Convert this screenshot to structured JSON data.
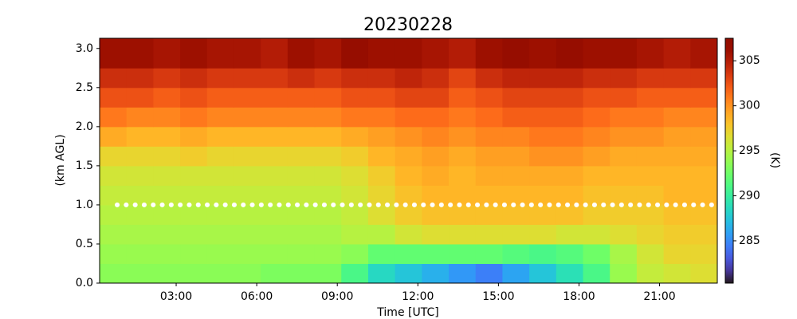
{
  "chart_data": {
    "type": "heatmap",
    "title": "20230228",
    "xlabel": "Time [UTC]",
    "ylabel": "(km AGL)",
    "colorbar_label": "(K)",
    "colormap": "turbo",
    "x_bins": [
      0.15,
      1.15,
      2.15,
      3.15,
      4.15,
      5.15,
      6.15,
      7.15,
      8.15,
      9.15,
      10.15,
      11.15,
      12.15,
      13.15,
      14.15,
      15.15,
      16.15,
      17.15,
      18.15,
      19.15,
      20.15,
      21.15,
      22.15,
      23.15
    ],
    "y_bins": [
      0,
      0.25,
      0.5,
      0.75,
      1.0,
      1.25,
      1.5,
      1.75,
      2.0,
      2.25,
      2.5,
      2.75,
      3.13
    ],
    "z": [
      [
        293.5,
        293.5,
        293.5,
        293.5,
        293.5,
        293.5,
        293,
        293,
        293,
        291,
        288.5,
        287.5,
        286.5,
        285.5,
        284.5,
        286,
        287.5,
        289,
        291,
        294,
        295.5,
        296,
        296.5
      ],
      [
        294,
        294,
        294,
        294,
        294,
        294,
        294,
        294,
        294,
        293.5,
        292,
        292,
        292,
        292,
        292,
        291.5,
        291,
        291.5,
        292.5,
        294.5,
        296,
        297,
        297
      ],
      [
        294.5,
        294.5,
        294.5,
        294.5,
        294.5,
        294.5,
        294.5,
        294.5,
        294.5,
        295,
        295,
        296,
        296.5,
        296.5,
        296.5,
        296.5,
        296.5,
        296,
        296,
        296.5,
        297,
        297.5,
        297.5
      ],
      [
        295,
        295,
        295,
        295,
        295,
        295,
        295,
        295,
        295,
        295.5,
        296.5,
        297.5,
        298,
        298,
        298,
        298,
        298,
        298,
        297.5,
        297.5,
        297.5,
        298,
        298
      ],
      [
        295.5,
        295.5,
        295.5,
        295.5,
        295.5,
        295.5,
        295.5,
        295.5,
        295.5,
        296,
        297,
        298,
        298.5,
        298.5,
        298.5,
        298.5,
        298.5,
        298.5,
        298,
        298,
        298,
        298.5,
        298.5
      ],
      [
        296,
        296,
        296,
        296,
        296,
        296,
        296,
        296,
        296,
        296.5,
        297.5,
        298.5,
        299,
        298.5,
        299,
        299,
        299,
        299,
        298.5,
        298.5,
        298.5,
        298.5,
        298.5
      ],
      [
        297,
        297,
        297,
        297.5,
        297,
        297,
        297,
        297,
        297,
        297.5,
        298.5,
        299,
        299.5,
        299,
        299.5,
        299.5,
        300,
        300,
        299.5,
        299,
        299,
        299,
        299
      ],
      [
        299,
        298.5,
        298.5,
        299,
        298.5,
        298.5,
        298.5,
        298.5,
        298.5,
        299,
        299.5,
        300,
        300.5,
        300,
        300.5,
        300.5,
        301,
        301,
        300.5,
        300,
        300,
        299.5,
        299.5
      ],
      [
        301,
        300.5,
        300.5,
        301,
        300.5,
        300.5,
        300.5,
        300.5,
        300.5,
        301,
        301,
        301.5,
        301.5,
        301,
        301.5,
        302,
        302,
        302,
        301.5,
        301,
        301,
        300.5,
        300.5
      ],
      [
        302.5,
        302.5,
        302,
        302.5,
        302,
        302,
        302,
        302,
        302,
        302.5,
        302.5,
        303,
        303,
        302,
        302.5,
        303,
        303,
        303,
        302.5,
        302.5,
        302,
        302,
        302
      ],
      [
        304,
        304,
        303.5,
        304,
        303.5,
        303.5,
        303.5,
        304,
        303.5,
        304,
        304,
        304.5,
        304,
        303,
        304,
        304.5,
        304.5,
        304.5,
        304,
        304,
        303.5,
        303.5,
        303.5
      ],
      [
        306,
        306,
        305.5,
        306,
        305.5,
        305.5,
        305,
        306,
        305.5,
        306.5,
        306,
        306,
        305.5,
        305,
        306,
        306.5,
        306,
        306.5,
        306,
        306,
        305.5,
        305,
        305.5
      ]
    ],
    "hline": 1.0,
    "hline_color": "#ffffff",
    "xlim": [
      0.15,
      23.15
    ],
    "xticks": [
      {
        "value": 3,
        "label": "03:00"
      },
      {
        "value": 6,
        "label": "06:00"
      },
      {
        "value": 9,
        "label": "09:00"
      },
      {
        "value": 12,
        "label": "12:00"
      },
      {
        "value": 15,
        "label": "15:00"
      },
      {
        "value": 18,
        "label": "18:00"
      },
      {
        "value": 21,
        "label": "21:00"
      }
    ],
    "ylim": [
      0,
      3.13
    ],
    "yticks": [
      {
        "value": 0,
        "label": "0.0"
      },
      0.5,
      {
        "value": 1,
        "label": "1.0"
      },
      1.5,
      {
        "value": 2,
        "label": "2.0"
      },
      2.5,
      {
        "value": 3,
        "label": "3.0"
      }
    ],
    "clim": [
      280.3,
      307.5
    ],
    "cticks": [
      285,
      290,
      295,
      300,
      305
    ]
  }
}
